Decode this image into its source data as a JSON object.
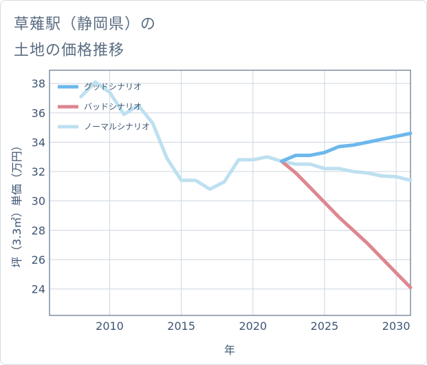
{
  "header": {
    "title_line1": "草薙駅（静岡県）の",
    "title_line2": "土地の価格推移"
  },
  "chart_data": {
    "type": "line",
    "title": "草薙駅（静岡県）の土地の価格推移",
    "xlabel": "年",
    "ylabel": "坪（3.3㎡）単価（万円）",
    "xlim": [
      2005.8,
      2031
    ],
    "ylim": [
      22.2,
      38.9
    ],
    "xticks": [
      2010,
      2015,
      2020,
      2025,
      2030
    ],
    "yticks": [
      24,
      26,
      28,
      30,
      32,
      34,
      36,
      38
    ],
    "grid": true,
    "legend_position": "top-left",
    "series": [
      {
        "name": "グッドシナリオ",
        "color": "#6cb8ec",
        "x": [
          2022,
          2023,
          2024,
          2025,
          2026,
          2027,
          2028,
          2029,
          2030,
          2031
        ],
        "values": [
          32.7,
          33.1,
          33.1,
          33.3,
          33.7,
          33.8,
          34.0,
          34.2,
          34.4,
          34.6
        ]
      },
      {
        "name": "バッドシナリオ",
        "color": "#dd8790",
        "x": [
          2022,
          2023,
          2024,
          2025,
          2026,
          2027,
          2028,
          2029,
          2030,
          2031
        ],
        "values": [
          32.7,
          31.9,
          30.9,
          29.9,
          28.9,
          28.0,
          27.1,
          26.1,
          25.1,
          24.1
        ]
      },
      {
        "name": "ノーマルシナリオ",
        "color": "#bde0f0",
        "x": [
          2008,
          2009,
          2010,
          2011,
          2012,
          2013,
          2014,
          2015,
          2016,
          2017,
          2018,
          2019,
          2020,
          2021,
          2022,
          2023,
          2024,
          2025,
          2026,
          2027,
          2028,
          2029,
          2030,
          2031
        ],
        "values": [
          37.1,
          38.1,
          37.4,
          35.9,
          36.5,
          35.3,
          32.9,
          31.4,
          31.4,
          30.8,
          31.3,
          32.8,
          32.8,
          33.0,
          32.7,
          32.5,
          32.5,
          32.2,
          32.2,
          32.0,
          31.9,
          31.7,
          31.65,
          31.4
        ]
      }
    ]
  }
}
